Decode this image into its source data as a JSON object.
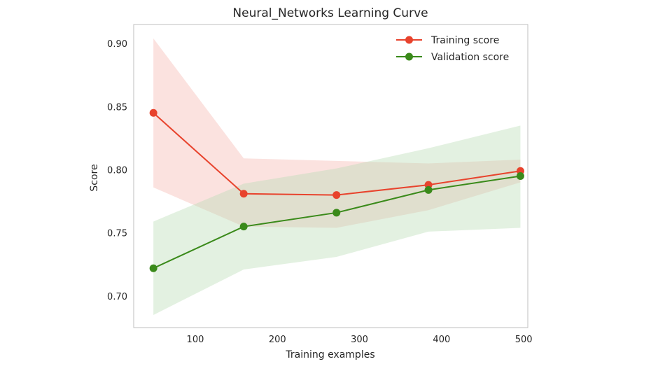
{
  "chart_data": {
    "type": "line",
    "title": "Neural_Networks Learning Curve",
    "xlabel": "Training examples",
    "ylabel": "Score",
    "xlim": [
      25,
      505
    ],
    "ylim": [
      0.675,
      0.915
    ],
    "x_ticks": [
      100,
      200,
      300,
      400,
      500
    ],
    "x_tick_labels": [
      "100",
      "200",
      "300",
      "400",
      "500"
    ],
    "y_ticks": [
      0.7,
      0.75,
      0.8,
      0.85,
      0.9
    ],
    "y_tick_labels": [
      "0.70",
      "0.75",
      "0.80",
      "0.85",
      "0.90"
    ],
    "grid": false,
    "legend_position": "top-right",
    "x": [
      49,
      159,
      272,
      384,
      496
    ],
    "series": [
      {
        "name": "Training score",
        "color": "#e8432d",
        "band_color": "#f4b6b0",
        "marker": "circle",
        "values": [
          0.845,
          0.781,
          0.78,
          0.788,
          0.799
        ],
        "band_upper": [
          0.904,
          0.809,
          0.807,
          0.805,
          0.808
        ],
        "band_lower": [
          0.786,
          0.755,
          0.754,
          0.768,
          0.79
        ]
      },
      {
        "name": "Validation score",
        "color": "#3a8a1a",
        "band_color": "#b9dbb4",
        "marker": "circle",
        "values": [
          0.722,
          0.755,
          0.766,
          0.784,
          0.795
        ],
        "band_upper": [
          0.759,
          0.789,
          0.801,
          0.817,
          0.835
        ],
        "band_lower": [
          0.685,
          0.721,
          0.731,
          0.751,
          0.754
        ]
      }
    ]
  }
}
